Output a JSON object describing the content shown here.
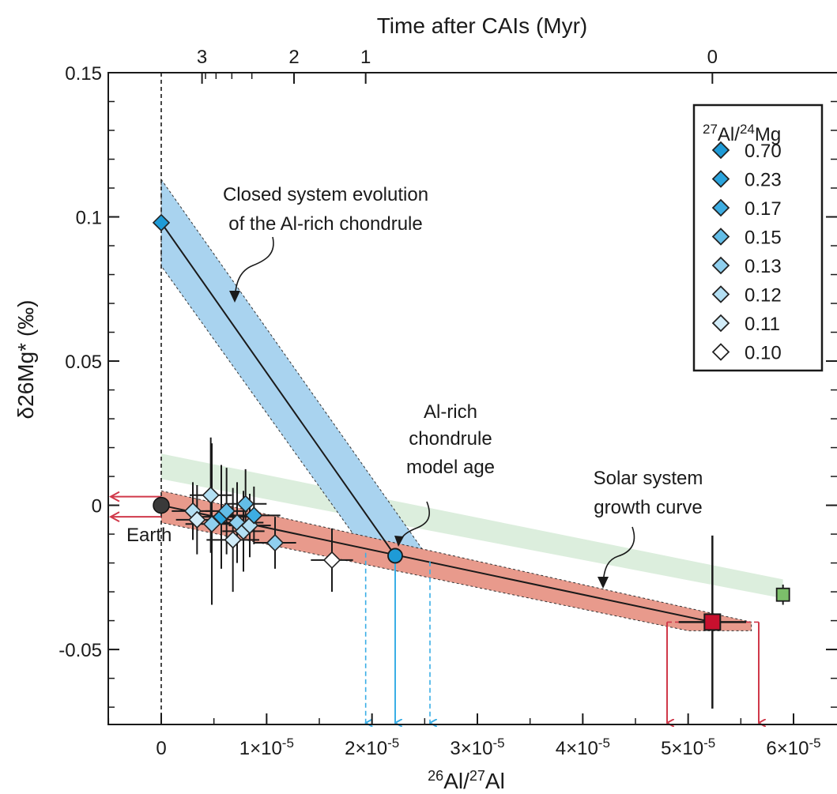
{
  "chart_data": {
    "type": "scatter",
    "top_axis": {
      "label": "Time after CAIs (Myr)",
      "ticks": [
        {
          "label": "3",
          "ratio": 3.87e-06
        },
        {
          "label": "2",
          "ratio": 1.26e-05
        },
        {
          "label": "1",
          "ratio": 1.94e-05
        },
        {
          "label": "0",
          "ratio": 5.23e-05
        }
      ]
    },
    "x_axis": {
      "label_base": "Al/",
      "label_sup1": "26",
      "label_sup2": "27",
      "label_end": "Al",
      "range": [
        -5e-06,
        6.2e-05
      ],
      "ticks": [
        {
          "value": 0,
          "label": "0"
        },
        {
          "value": 1e-05,
          "label": "1×10",
          "exp": "-5"
        },
        {
          "value": 2e-05,
          "label": "2×10",
          "exp": "-5"
        },
        {
          "value": 3e-05,
          "label": "3×10",
          "exp": "-5"
        },
        {
          "value": 4e-05,
          "label": "4×10",
          "exp": "-5"
        },
        {
          "value": 5e-05,
          "label": "5×10",
          "exp": "-5"
        },
        {
          "value": 6e-05,
          "label": "6×10",
          "exp": "-5"
        }
      ]
    },
    "y_axis": {
      "label": "δ26Mg* (‰)",
      "range": [
        -0.076,
        0.15
      ],
      "ticks": [
        {
          "value": 0.15,
          "label": "0.15"
        },
        {
          "value": 0.1,
          "label": "0.1"
        },
        {
          "value": 0.05,
          "label": "0.05"
        },
        {
          "value": 0,
          "label": "0"
        },
        {
          "value": -0.05,
          "label": "-0.05"
        }
      ]
    },
    "legend": {
      "title_sup1": "27",
      "title_mid": "Al/",
      "title_sup2": "24",
      "title_end": "Mg",
      "placement": "top-right",
      "items": [
        {
          "label": "0.70",
          "color": "#1e9bd7"
        },
        {
          "label": "0.23",
          "color": "#2aa4dd"
        },
        {
          "label": "0.17",
          "color": "#3dade2"
        },
        {
          "label": "0.15",
          "color": "#63bde7"
        },
        {
          "label": "0.13",
          "color": "#8fcfee"
        },
        {
          "label": "0.12",
          "color": "#b3dff3"
        },
        {
          "label": "0.11",
          "color": "#d2ecf8"
        },
        {
          "label": "0.10",
          "color": "#ffffff"
        }
      ]
    },
    "annotations": {
      "closed_line1": "Closed system evolution",
      "closed_line2": "of the Al-rich chondrule",
      "model_line1": "Al-rich",
      "model_line2": "chondrule",
      "model_line3": "model age",
      "solar_line1": "Solar system",
      "solar_line2": "growth curve",
      "earth": "Earth"
    },
    "solar_curve": {
      "x": [
        0,
        5.23e-05
      ],
      "y": [
        0,
        -0.0405
      ]
    },
    "closed_system_line": {
      "x": [
        0,
        2.22e-05
      ],
      "y": [
        0.098,
        -0.0175
      ]
    },
    "green_band": {
      "x": [
        0,
        5.9e-05
      ],
      "y": [
        0.0135,
        -0.029
      ]
    },
    "model_age_point": {
      "x": 2.22e-05,
      "y": -0.0175,
      "color": "#1e9bd7"
    },
    "model_age_range": [
      1.94e-05,
      2.55e-05
    ],
    "cai_range": [
      4.8e-05,
      5.67e-05
    ],
    "earth_point": {
      "x": 0,
      "y": 0,
      "color": "#3a3a3a"
    },
    "cai_point": {
      "x": 5.23e-05,
      "y": -0.0405,
      "ex": 3.2e-06,
      "ey": 0.03,
      "color": "#c8102e"
    },
    "green_point": {
      "x": 5.9e-05,
      "y": -0.031,
      "ey": 0.0035,
      "color": "#7cbf6a"
    },
    "chondrule_points": [
      {
        "x": 0,
        "y": 0.098,
        "ex": 0.0,
        "ey": 0.0,
        "color": "#1e9bd7"
      },
      {
        "x": 3e-06,
        "y": -0.002,
        "ex": 2e-06,
        "ey": 0.01,
        "color": "#b3dff3"
      },
      {
        "x": 3.4e-06,
        "y": -0.005,
        "ex": 2e-06,
        "ey": 0.012,
        "color": "#d2ecf8"
      },
      {
        "x": 4.7e-06,
        "y": 0.0035,
        "ex": 2e-06,
        "ey": 0.02,
        "color": "#b3dff3"
      },
      {
        "x": 4.8e-06,
        "y": -0.0065,
        "ex": 2.5e-06,
        "ey": 0.028,
        "color": "#8fcfee"
      },
      {
        "x": 5.7e-06,
        "y": -0.004,
        "ex": 2.5e-06,
        "ey": 0.018,
        "color": "#2aa4dd"
      },
      {
        "x": 6.2e-06,
        "y": -0.002,
        "ex": 2e-06,
        "ey": 0.015,
        "color": "#63bde7"
      },
      {
        "x": 6.8e-06,
        "y": -0.012,
        "ex": 2.5e-06,
        "ey": 0.018,
        "color": "#d2ecf8"
      },
      {
        "x": 7.2e-06,
        "y": -0.006,
        "ex": 2.5e-06,
        "ey": 0.014,
        "color": "#8fcfee"
      },
      {
        "x": 7.8e-06,
        "y": -0.009,
        "ex": 2e-06,
        "ey": 0.014,
        "color": "#b3dff3"
      },
      {
        "x": 8e-06,
        "y": 0.0005,
        "ex": 2e-06,
        "ey": 0.012,
        "color": "#63bde7"
      },
      {
        "x": 8.4e-06,
        "y": -0.007,
        "ex": 2e-06,
        "ey": 0.011,
        "color": "#b3dff3"
      },
      {
        "x": 8.8e-06,
        "y": -0.0035,
        "ex": 2.5e-06,
        "ey": 0.01,
        "color": "#3dade2"
      },
      {
        "x": 1.08e-05,
        "y": -0.013,
        "ex": 2e-06,
        "ey": 0.009,
        "color": "#8fcfee"
      },
      {
        "x": 1.62e-05,
        "y": -0.019,
        "ex": 2e-06,
        "ey": 0.011,
        "color": "#ffffff"
      }
    ]
  }
}
